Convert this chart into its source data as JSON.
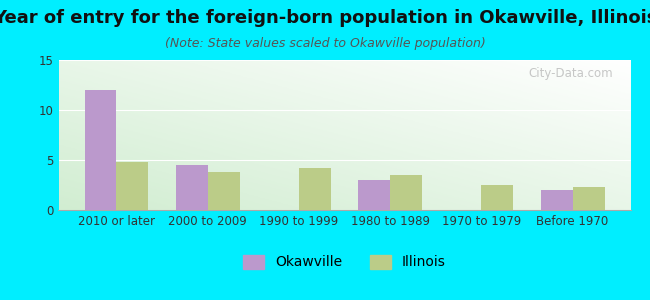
{
  "title": "Year of entry for the foreign-born population in Okawville, Illinois",
  "subtitle": "(Note: State values scaled to Okawville population)",
  "categories": [
    "2010 or later",
    "2000 to 2009",
    "1990 to 1999",
    "1980 to 1989",
    "1970 to 1979",
    "Before 1970"
  ],
  "okawville_values": [
    12,
    4.5,
    0,
    3,
    0,
    2
  ],
  "illinois_values": [
    4.8,
    3.8,
    4.2,
    3.5,
    2.5,
    2.3
  ],
  "okawville_color": "#bb99cc",
  "illinois_color": "#bbcc88",
  "background_outer": "#00eeff",
  "ylim": [
    0,
    15
  ],
  "yticks": [
    0,
    5,
    10,
    15
  ],
  "bar_width": 0.35,
  "title_fontsize": 13,
  "subtitle_fontsize": 9,
  "tick_fontsize": 8.5,
  "legend_fontsize": 10,
  "watermark": "City-Data.com"
}
